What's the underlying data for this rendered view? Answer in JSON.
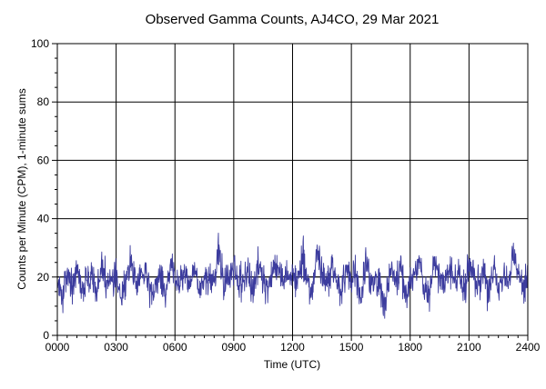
{
  "chart_data": {
    "type": "line",
    "title": "Observed Gamma Counts, AJ4CO, 29 Mar 2021",
    "xlabel": "Time (UTC)",
    "ylabel": "Counts per Minute (CPM), 1-minute sums",
    "xlim": [
      0,
      24
    ],
    "ylim": [
      0,
      100
    ],
    "x_tick_labels": [
      "0000",
      "0300",
      "0600",
      "0900",
      "1200",
      "1500",
      "1800",
      "2100",
      "2400"
    ],
    "y_tick_labels": [
      "0",
      "20",
      "40",
      "60",
      "80",
      "100"
    ],
    "grid": true,
    "reference_line_y": 20,
    "colors": {
      "series": "#3c3c9e",
      "grid": "#000000",
      "reference": "#000000"
    },
    "series": [
      {
        "sampling": "1-minute sums, 1440 samples over 24 h; values shown at 15-minute resolution",
        "x_hours": [
          0,
          0.25,
          0.5,
          0.75,
          1,
          1.25,
          1.5,
          1.75,
          2,
          2.25,
          2.5,
          2.75,
          3,
          3.25,
          3.5,
          3.75,
          4,
          4.25,
          4.5,
          4.75,
          5,
          5.25,
          5.5,
          5.75,
          6,
          6.25,
          6.5,
          6.75,
          7,
          7.25,
          7.5,
          7.75,
          8,
          8.25,
          8.5,
          8.75,
          9,
          9.25,
          9.5,
          9.75,
          10,
          10.25,
          10.5,
          10.75,
          11,
          11.25,
          11.5,
          11.75,
          12,
          12.25,
          12.5,
          12.75,
          13,
          13.25,
          13.5,
          13.75,
          14,
          14.25,
          14.5,
          14.75,
          15,
          15.25,
          15.5,
          15.75,
          16,
          16.25,
          16.5,
          16.75,
          17,
          17.25,
          17.5,
          17.75,
          18,
          18.25,
          18.5,
          18.75,
          19,
          19.25,
          19.5,
          19.75,
          20,
          20.25,
          20.5,
          20.75,
          21,
          21.25,
          21.5,
          21.75,
          22,
          22.25,
          22.5,
          22.75,
          23,
          23.25,
          23.5,
          23.75,
          24
        ],
        "values": [
          18,
          12,
          22,
          17,
          24,
          15,
          19,
          21,
          14,
          26,
          17,
          19,
          22,
          13,
          18,
          27,
          16,
          20,
          23,
          15,
          18,
          21,
          12,
          24,
          19,
          17,
          22,
          16,
          25,
          14,
          19,
          21,
          18,
          31,
          15,
          20,
          23,
          17,
          19,
          22,
          14,
          26,
          18,
          15,
          21,
          24,
          17,
          19,
          22,
          16,
          28,
          18,
          14,
          31,
          20,
          17,
          23,
          19,
          15,
          24,
          18,
          21,
          13,
          26,
          17,
          20,
          16,
          9,
          23,
          19,
          22,
          15,
          18,
          21,
          25,
          17,
          14,
          27,
          20,
          16,
          23,
          18,
          21,
          15,
          26,
          19,
          17,
          22,
          14,
          24,
          18,
          20,
          16,
          29,
          21,
          15,
          18
        ]
      }
    ]
  }
}
